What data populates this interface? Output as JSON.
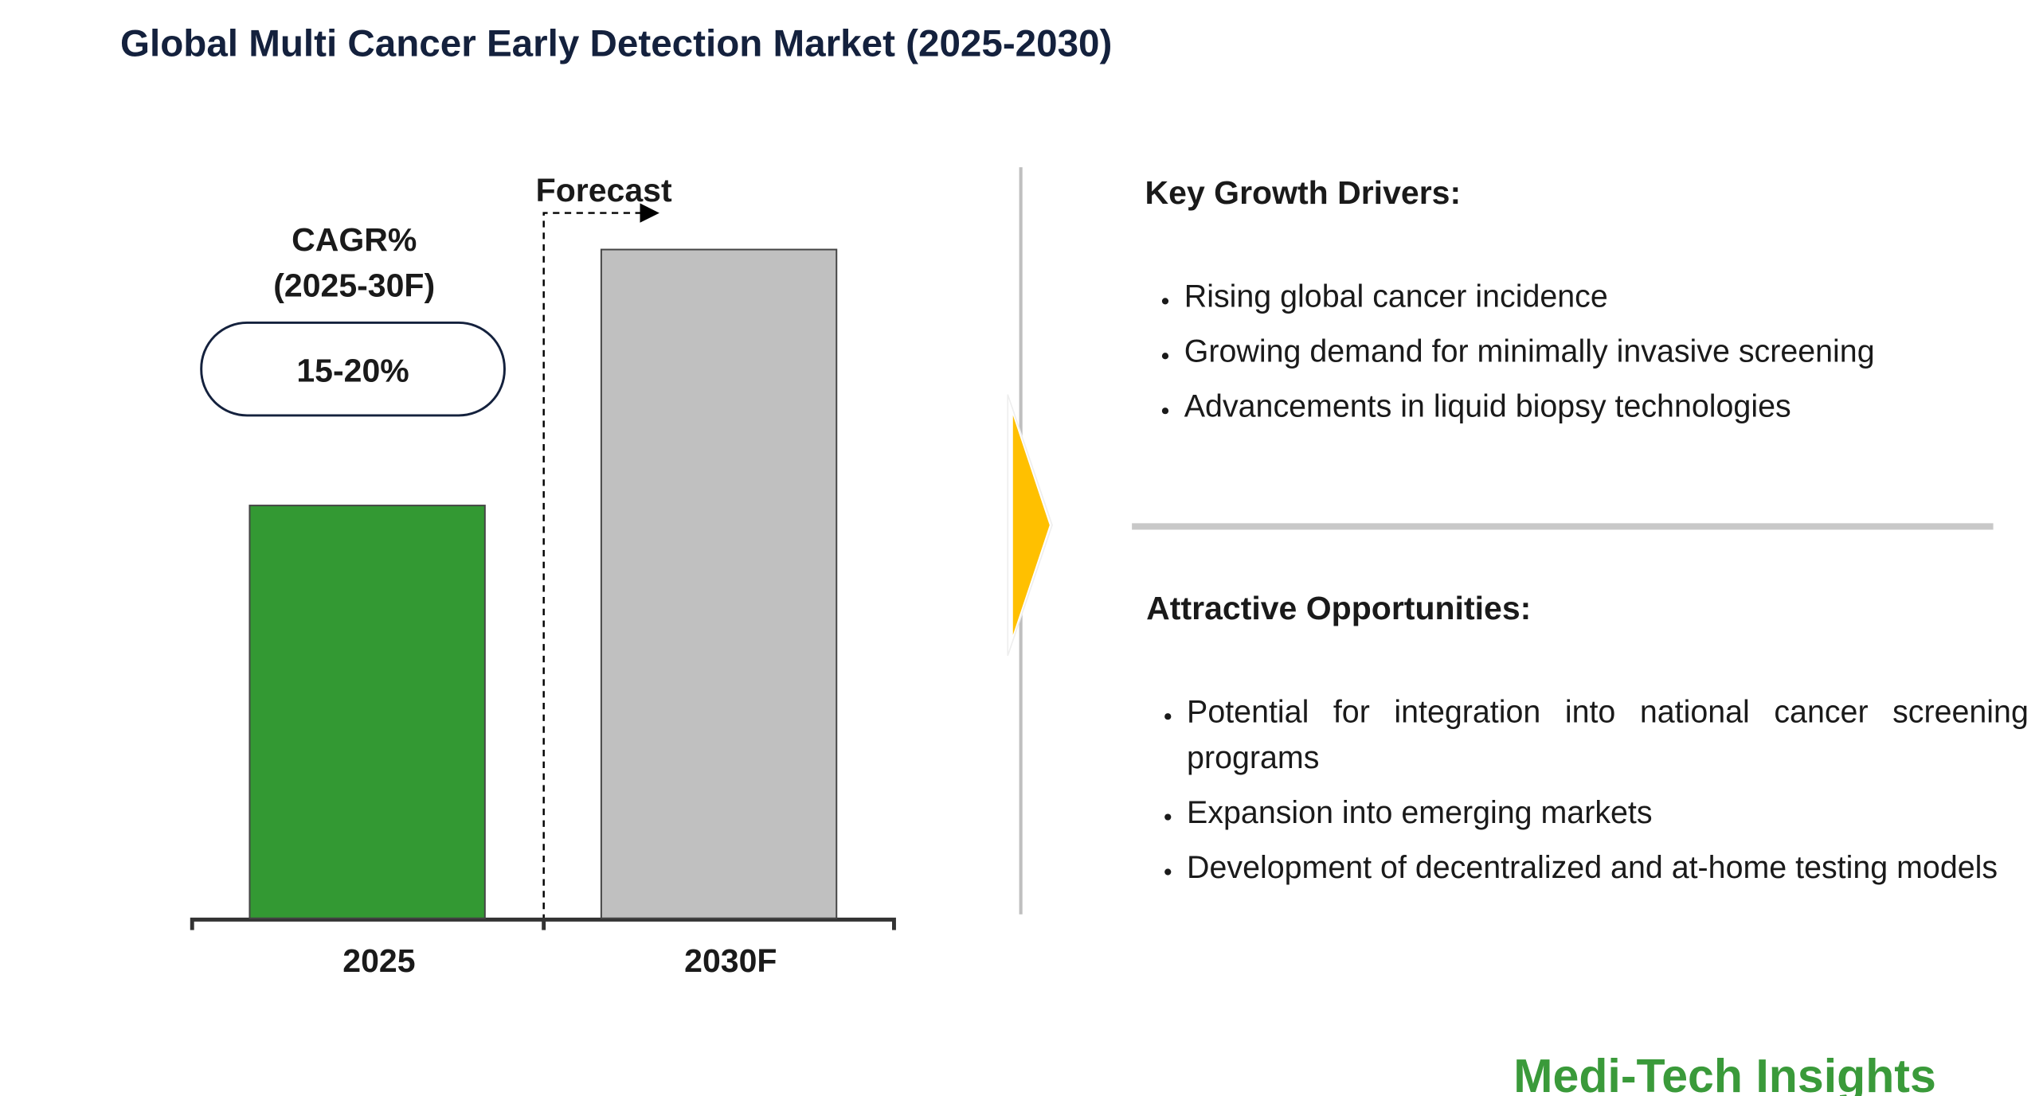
{
  "title": "Global Multi Cancer Early Detection Market (2025-2030)",
  "chart_data": {
    "type": "bar",
    "categories": [
      "2025",
      "2030F"
    ],
    "values": [
      100,
      162
    ],
    "colors": [
      "#339933",
      "#c0c0c0"
    ]
  },
  "forecast_label": "Forecast",
  "cagr": {
    "label": "CAGR%",
    "period": "(2025-30F)",
    "value": "15-20%"
  },
  "drivers": {
    "heading": "Key Growth Drivers:",
    "items": [
      "Rising global cancer incidence",
      "Growing demand for minimally invasive screening",
      "Advancements in liquid biopsy technologies"
    ]
  },
  "opportunities": {
    "heading": "Attractive Opportunities:",
    "items": [
      "Potential for integration into national cancer screening programs",
      "Expansion into emerging markets",
      "Development of decentralized and at-home testing models"
    ]
  },
  "logo": "Medi-Tech Insights"
}
